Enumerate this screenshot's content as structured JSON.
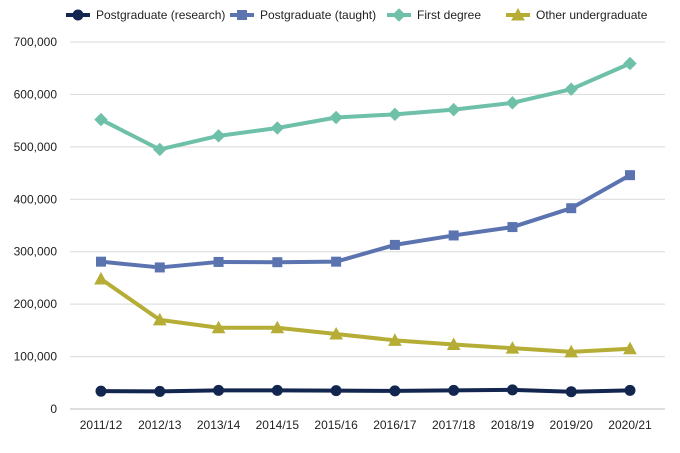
{
  "chart_data": {
    "type": "line",
    "title": "",
    "xlabel": "",
    "ylabel": "",
    "ylim": [
      0,
      700000
    ],
    "yticks": [
      0,
      100000,
      200000,
      300000,
      400000,
      500000,
      600000,
      700000
    ],
    "ytick_labels": [
      "0",
      "100,000",
      "200,000",
      "300,000",
      "400,000",
      "500,000",
      "600,000",
      "700,000"
    ],
    "grid": true,
    "legend_position": "top",
    "categories": [
      "2011/12",
      "2012/13",
      "2013/14",
      "2014/15",
      "2015/16",
      "2016/17",
      "2017/18",
      "2018/19",
      "2019/20",
      "2020/21"
    ],
    "series": [
      {
        "name": "Postgraduate (research)",
        "color": "#13264f",
        "marker": "circle",
        "values": [
          34000,
          33500,
          35500,
          35500,
          35000,
          34500,
          35500,
          36500,
          33000,
          35500
        ]
      },
      {
        "name": "Postgraduate (taught)",
        "color": "#5b74b0",
        "marker": "square",
        "values": [
          281000,
          270000,
          280500,
          280000,
          281000,
          313000,
          331000,
          347000,
          383000,
          446000
        ]
      },
      {
        "name": "First degree",
        "color": "#6fc0a9",
        "marker": "diamond",
        "values": [
          552000,
          495000,
          521000,
          536000,
          556000,
          562000,
          571000,
          584000,
          610000,
          659000
        ]
      },
      {
        "name": "Other undergraduate",
        "color": "#b5ad35",
        "marker": "triangle",
        "values": [
          248000,
          170000,
          155000,
          155000,
          143000,
          131000,
          123000,
          116000,
          109000,
          115000
        ]
      }
    ]
  }
}
